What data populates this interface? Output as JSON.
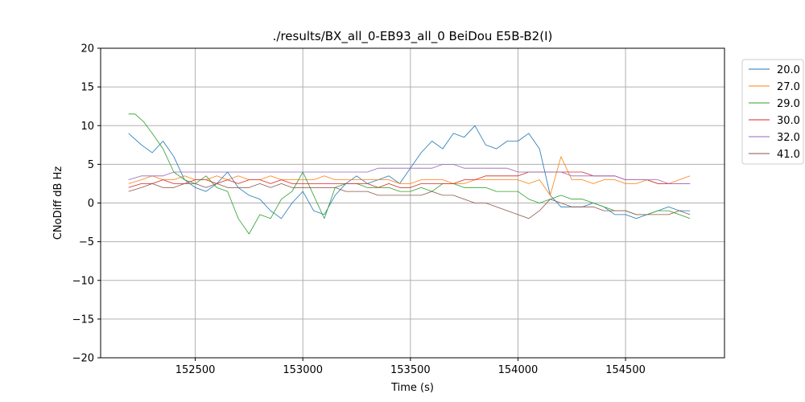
{
  "chart_data": {
    "type": "line",
    "title": "./results/BX_all_0-EB93_all_0 BeiDou E5B-B2(I)",
    "xlabel": "Time (s)",
    "ylabel": "CNoDiff dB Hz",
    "xlim": [
      152060,
      154960
    ],
    "ylim": [
      -20,
      20
    ],
    "xticks": [
      152500,
      153000,
      153500,
      154000,
      154500
    ],
    "yticks": [
      -20,
      -15,
      -10,
      -5,
      0,
      5,
      10,
      15,
      20
    ],
    "grid": true,
    "legend_position": "outside-right-top",
    "series": [
      {
        "name": "20.0",
        "color": "#1f77b4",
        "x": [
          152190,
          152250,
          152300,
          152350,
          152400,
          152450,
          152500,
          152550,
          152600,
          152650,
          152700,
          152750,
          152800,
          152850,
          152900,
          152950,
          153000,
          153050,
          153100,
          153150,
          153200,
          153250,
          153300,
          153350,
          153400,
          153450,
          153500,
          153550,
          153600,
          153650,
          153700,
          153750,
          153800,
          153850,
          153900,
          153950,
          154000,
          154050,
          154100,
          154150,
          154200,
          154250,
          154300,
          154350,
          154400,
          154450,
          154500,
          154550,
          154600,
          154650,
          154700,
          154750,
          154800
        ],
        "y": [
          9,
          7.5,
          6.5,
          8,
          6,
          3,
          2,
          1.5,
          2.5,
          4,
          2,
          1,
          0.5,
          -1,
          -2,
          0,
          1.5,
          -1,
          -1.5,
          1,
          2.5,
          3.5,
          2.5,
          3,
          3.5,
          2.5,
          4.5,
          6.5,
          8,
          7,
          9,
          8.5,
          10,
          7.5,
          7,
          8,
          8,
          9,
          7,
          1,
          -0.5,
          -0.5,
          -0.5,
          0,
          -0.5,
          -1.5,
          -1.5,
          -2,
          -1.5,
          -1,
          -0.5,
          -1,
          -1
        ]
      },
      {
        "name": "27.0",
        "color": "#ff7f0e",
        "x": [
          152190,
          152250,
          152300,
          152350,
          152400,
          152450,
          152500,
          152550,
          152600,
          152650,
          152700,
          152750,
          152800,
          152850,
          152900,
          152950,
          153000,
          153050,
          153100,
          153150,
          153200,
          153250,
          153300,
          153350,
          153400,
          153450,
          153500,
          153550,
          153600,
          153650,
          153700,
          153750,
          153800,
          153850,
          153900,
          153950,
          154000,
          154050,
          154100,
          154150,
          154200,
          154250,
          154300,
          154350,
          154400,
          154450,
          154500,
          154550,
          154600,
          154650,
          154700,
          154750,
          154800
        ],
        "y": [
          2.5,
          3,
          3.5,
          3,
          3,
          3.5,
          3,
          3,
          3.5,
          3,
          3.5,
          3,
          3,
          3.5,
          3,
          3,
          3,
          3,
          3.5,
          3,
          3,
          3,
          3,
          3,
          3,
          2.5,
          2.5,
          3,
          3,
          3,
          2.5,
          2.5,
          3,
          3,
          3,
          3,
          3,
          2.5,
          3,
          1,
          6,
          3,
          3,
          2.5,
          3,
          3,
          2.5,
          2.5,
          3,
          2.5,
          2.5,
          3,
          3.5
        ]
      },
      {
        "name": "29.0",
        "color": "#2ca02c",
        "x": [
          152190,
          152220,
          152260,
          152300,
          152350,
          152400,
          152450,
          152500,
          152550,
          152600,
          152650,
          152700,
          152750,
          152800,
          152850,
          152900,
          152950,
          153000,
          153050,
          153100,
          153150,
          153200,
          153250,
          153300,
          153350,
          153400,
          153450,
          153500,
          153550,
          153600,
          153650,
          153700,
          153750,
          153800,
          153850,
          153900,
          153950,
          154000,
          154050,
          154100,
          154150,
          154200,
          154250,
          154300,
          154350,
          154400,
          154450,
          154500,
          154550,
          154600,
          154650,
          154700,
          154750,
          154800
        ],
        "y": [
          11.5,
          11.5,
          10.5,
          9,
          7,
          4,
          3,
          2.5,
          3.5,
          2,
          1.5,
          -2,
          -4,
          -1.5,
          -2,
          0.5,
          1.5,
          4,
          1,
          -2,
          2,
          2.5,
          2.5,
          2,
          2,
          2,
          1.5,
          1.5,
          2,
          1.5,
          2.5,
          2.5,
          2,
          2,
          2,
          1.5,
          1.5,
          1.5,
          0.5,
          0,
          0.5,
          1,
          0.5,
          0.5,
          0,
          -0.5,
          -1,
          -1,
          -1.5,
          -1.5,
          -1,
          -1,
          -1.5,
          -2
        ]
      },
      {
        "name": "30.0",
        "color": "#d62728",
        "x": [
          152190,
          152250,
          152300,
          152350,
          152400,
          152450,
          152500,
          152550,
          152600,
          152650,
          152700,
          152750,
          152800,
          152850,
          152900,
          152950,
          153000,
          153050,
          153100,
          153150,
          153200,
          153250,
          153300,
          153350,
          153400,
          153450,
          153500,
          153550,
          153600,
          153650,
          153700,
          153750,
          153800,
          153850,
          153900,
          153950,
          154000,
          154050,
          154100,
          154150,
          154200,
          154250,
          154300,
          154350,
          154400,
          154450,
          154500,
          154550,
          154600,
          154650,
          154700,
          154750,
          154800
        ],
        "y": [
          2,
          2.5,
          2.5,
          3,
          2.5,
          2.5,
          3,
          3,
          2.5,
          3,
          2.5,
          3,
          3,
          2.5,
          3,
          2.5,
          2.5,
          2.5,
          2.5,
          2.5,
          2.5,
          2.5,
          2.5,
          2,
          2.5,
          2,
          2,
          2.5,
          2.5,
          2.5,
          2.5,
          3,
          3,
          3.5,
          3.5,
          3.5,
          3.5,
          4,
          4,
          4,
          4,
          4,
          4,
          3.5,
          3.5,
          3.5,
          3,
          3,
          3,
          2.5,
          2.5,
          2.5,
          2.5
        ]
      },
      {
        "name": "32.0",
        "color": "#9467bd",
        "x": [
          152190,
          152250,
          152300,
          152350,
          152400,
          152450,
          152500,
          152550,
          152600,
          152650,
          152700,
          152750,
          152800,
          152850,
          152900,
          152950,
          153000,
          153050,
          153100,
          153150,
          153200,
          153250,
          153300,
          153350,
          153400,
          153450,
          153500,
          153550,
          153600,
          153650,
          153700,
          153750,
          153800,
          153850,
          153900,
          153950,
          154000,
          154050,
          154100,
          154150,
          154200,
          154250,
          154300,
          154350,
          154400,
          154450,
          154500,
          154550,
          154600,
          154650,
          154700,
          154750,
          154800
        ],
        "y": [
          3,
          3.5,
          3.5,
          3.5,
          4,
          4,
          4,
          4,
          4,
          4,
          4,
          4,
          4,
          4,
          4,
          4,
          4,
          4,
          4,
          4,
          4,
          4,
          4,
          4.5,
          4.5,
          4.5,
          4.5,
          4.5,
          4.5,
          5,
          5,
          4.5,
          4.5,
          4.5,
          4.5,
          4.5,
          4,
          4,
          4,
          4,
          4,
          3.5,
          3.5,
          3.5,
          3.5,
          3.5,
          3,
          3,
          3,
          3,
          2.5,
          2.5,
          2.5
        ]
      },
      {
        "name": "41.0",
        "color": "#8c564b",
        "x": [
          152190,
          152250,
          152300,
          152350,
          152400,
          152450,
          152500,
          152550,
          152600,
          152650,
          152700,
          152750,
          152800,
          152850,
          152900,
          152950,
          153000,
          153050,
          153100,
          153150,
          153200,
          153250,
          153300,
          153350,
          153400,
          153450,
          153500,
          153550,
          153600,
          153650,
          153700,
          153750,
          153800,
          153850,
          153900,
          153950,
          154000,
          154050,
          154100,
          154150,
          154200,
          154250,
          154300,
          154350,
          154400,
          154450,
          154500,
          154550,
          154600,
          154650,
          154700,
          154750,
          154800
        ],
        "y": [
          1.5,
          2,
          2.5,
          2,
          2,
          2.5,
          2.5,
          2,
          2.5,
          2,
          2,
          2,
          2.5,
          2,
          2.5,
          2,
          2,
          2,
          2,
          2,
          1.5,
          1.5,
          1.5,
          1,
          1,
          1,
          1,
          1,
          1.5,
          1,
          1,
          0.5,
          0,
          0,
          -0.5,
          -1,
          -1.5,
          -2,
          -1,
          0.5,
          0,
          -0.5,
          -0.5,
          -0.5,
          -1,
          -1,
          -1,
          -1.5,
          -1.5,
          -1.5,
          -1.5,
          -1,
          -1.5
        ]
      }
    ]
  }
}
